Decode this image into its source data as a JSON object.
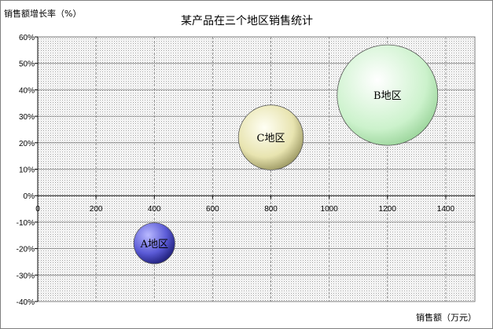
{
  "chart_data": {
    "type": "scatter",
    "subtype": "bubble",
    "title": "某产品在三个地区销售统计",
    "xlabel": "销售额（万元）",
    "ylabel": "销售额增长率（%）",
    "xlim": [
      0,
      1500
    ],
    "ylim": [
      -40,
      60
    ],
    "xticks": [
      0,
      200,
      400,
      600,
      800,
      1000,
      1200,
      1400
    ],
    "yticks": [
      60,
      50,
      40,
      30,
      20,
      10,
      0,
      -10,
      -20,
      -30,
      -40
    ],
    "xtick_labels": [
      "0",
      "200",
      "400",
      "600",
      "800",
      "1000",
      "1200",
      "1400"
    ],
    "ytick_labels": [
      "60%",
      "50%",
      "40%",
      "30%",
      "20%",
      "10%",
      "0%",
      "-10%",
      "-20%",
      "-30%",
      "-40%"
    ],
    "grid": true,
    "series": [
      {
        "label": "A地区",
        "x": 400,
        "y": -18,
        "size": 8,
        "color": "#5a5ad6"
      },
      {
        "label": "C地区",
        "x": 800,
        "y": 22,
        "size": 20,
        "color": "#e8e4b0"
      },
      {
        "label": "B地区",
        "x": 1200,
        "y": 38,
        "size": 48,
        "color": "#ccf2cc"
      }
    ]
  }
}
